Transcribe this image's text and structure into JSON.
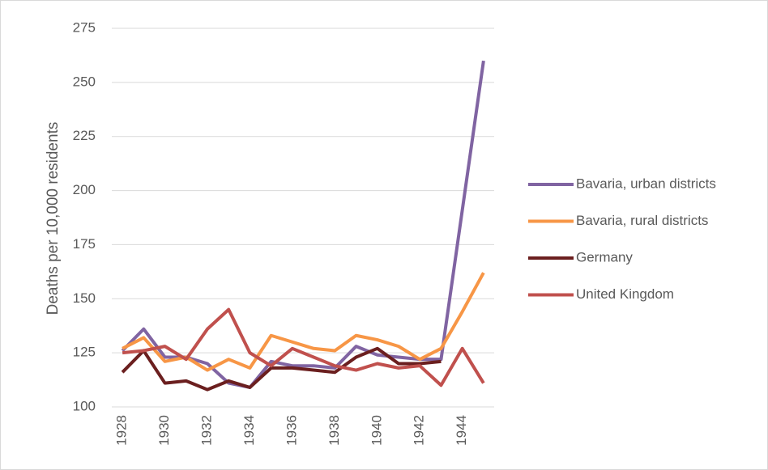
{
  "chart_data": {
    "type": "line",
    "y_label": "Deaths per 10,000 residents",
    "x": [
      1928,
      1929,
      1930,
      1931,
      1932,
      1933,
      1934,
      1935,
      1936,
      1937,
      1938,
      1939,
      1940,
      1941,
      1942,
      1943,
      1944,
      1945
    ],
    "xlim": [
      1927.5,
      1945.5
    ],
    "xticks": [
      1928,
      1930,
      1932,
      1934,
      1936,
      1938,
      1940,
      1942,
      1944
    ],
    "ylim": [
      100,
      275
    ],
    "yticks": [
      100,
      125,
      150,
      175,
      200,
      225,
      250,
      275
    ],
    "grid": true,
    "legend": "right",
    "series": [
      {
        "name": "Bavaria, urban districts",
        "color": "#8064a2",
        "values": [
          126,
          136,
          123,
          123,
          120,
          111,
          109,
          121,
          119,
          119,
          118,
          128,
          124,
          123,
          122,
          122,
          191,
          260
        ]
      },
      {
        "name": "Bavaria, rural districts",
        "color": "#f79646",
        "values": [
          127,
          132,
          121,
          123,
          117,
          122,
          118,
          133,
          130,
          127,
          126,
          133,
          131,
          128,
          122,
          127,
          144,
          162
        ]
      },
      {
        "name": "Germany",
        "color": "#6b1f1f",
        "values": [
          116,
          126,
          111,
          112,
          108,
          112,
          109,
          118,
          118,
          117,
          116,
          123,
          127,
          120,
          120,
          121,
          null,
          null
        ]
      },
      {
        "name": "United Kingdom",
        "color": "#c0504d",
        "values": [
          125,
          126,
          128,
          122,
          136,
          145,
          125,
          119,
          127,
          123,
          119,
          117,
          120,
          118,
          119,
          110,
          127,
          111
        ]
      }
    ]
  }
}
